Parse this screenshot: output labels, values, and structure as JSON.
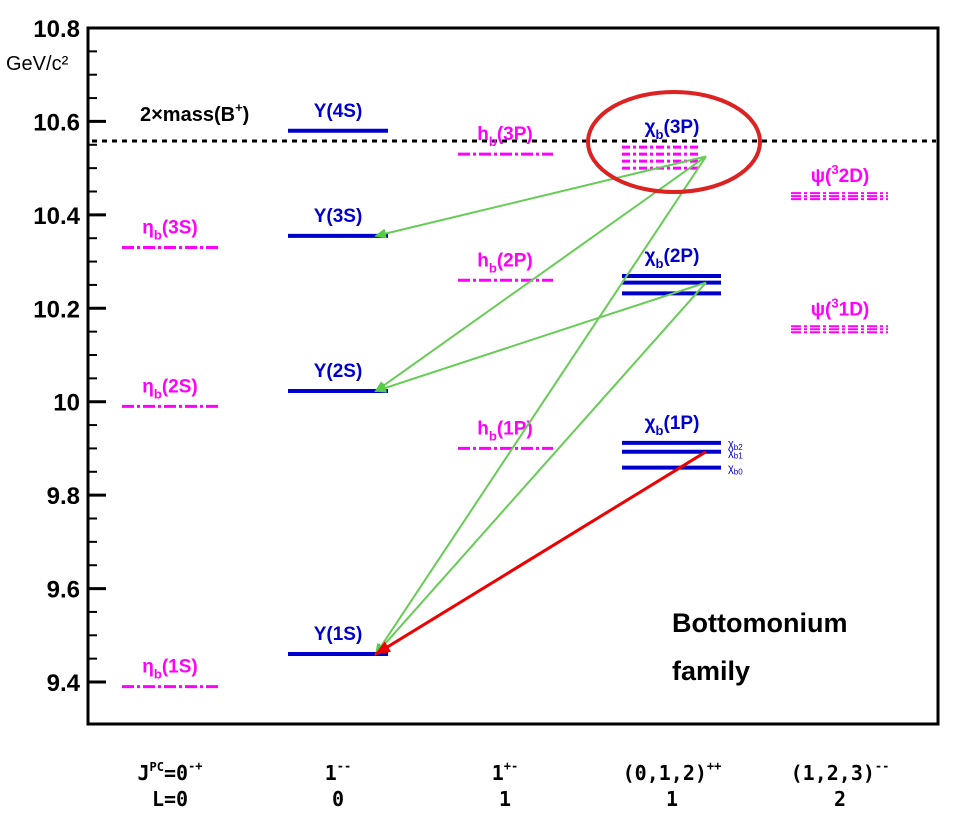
{
  "chart_data": {
    "type": "level-diagram",
    "ylabel": "GeV/c²",
    "ylim": [
      9.35,
      10.8
    ],
    "yticks": [
      "10.8",
      "10.6",
      "10.4",
      "10.2",
      "10",
      "9.8",
      "9.6",
      "9.4"
    ],
    "ytick_values": [
      10.8,
      10.6,
      10.4,
      10.2,
      10.0,
      9.8,
      9.6,
      9.4
    ],
    "colors": {
      "measured": "#0000cc",
      "predicted": "#ff00ff",
      "radiative": "#66cc55",
      "hadronic": "#ee0000",
      "highlight": "#dd2222"
    },
    "columns": [
      {
        "jpc_prefix": "J",
        "jpc_sup": "PC",
        "jpc_text": "=0",
        "jpc_sup2": "-+",
        "l_text": "L=0"
      },
      {
        "jpc_prefix": "",
        "jpc_sup": "",
        "jpc_text": "1",
        "jpc_sup2": "--",
        "l_text": "0"
      },
      {
        "jpc_prefix": "",
        "jpc_sup": "",
        "jpc_text": "1",
        "jpc_sup2": "+-",
        "l_text": "1"
      },
      {
        "jpc_prefix": "",
        "jpc_sup": "",
        "jpc_text": "(0,1,2)",
        "jpc_sup2": "++",
        "l_text": "1"
      },
      {
        "jpc_prefix": "",
        "jpc_sup": "",
        "jpc_text": "(1,2,3)",
        "jpc_sup2": "--",
        "l_text": "2"
      }
    ],
    "levels": [
      {
        "column": 0,
        "mass": 10.33,
        "style": "predicted",
        "label_main": "η",
        "label_sub": "b",
        "label_sup": "",
        "label_rest": "(3S)"
      },
      {
        "column": 0,
        "mass": 9.99,
        "style": "predicted",
        "label_main": "η",
        "label_sub": "b",
        "label_sup": "",
        "label_rest": "(2S)"
      },
      {
        "column": 0,
        "mass": 9.39,
        "style": "predicted",
        "label_main": "η",
        "label_sub": "b",
        "label_sup": "",
        "label_rest": "(1S)"
      },
      {
        "column": 1,
        "mass": 10.58,
        "style": "measured",
        "label_main": "Υ",
        "label_sub": "",
        "label_sup": "",
        "label_rest": "(4S)"
      },
      {
        "column": 1,
        "mass": 10.355,
        "style": "measured",
        "label_main": "Υ",
        "label_sub": "",
        "label_sup": "",
        "label_rest": "(3S)"
      },
      {
        "column": 1,
        "mass": 10.023,
        "style": "measured",
        "label_main": "Υ",
        "label_sub": "",
        "label_sup": "",
        "label_rest": "(2S)"
      },
      {
        "column": 1,
        "mass": 9.46,
        "style": "measured",
        "label_main": "Υ",
        "label_sub": "",
        "label_sup": "",
        "label_rest": "(1S)"
      },
      {
        "column": 2,
        "mass": 10.53,
        "style": "predicted",
        "label_main": "h",
        "label_sub": "b",
        "label_sup": "",
        "label_rest": "(3P)"
      },
      {
        "column": 2,
        "mass": 10.26,
        "style": "predicted",
        "label_main": "h",
        "label_sub": "b",
        "label_sup": "",
        "label_rest": "(2P)"
      },
      {
        "column": 2,
        "mass": 9.9,
        "style": "predicted",
        "label_main": "h",
        "label_sub": "b",
        "label_sup": "",
        "label_rest": "(1P)"
      },
      {
        "column": 3,
        "mass": 10.53,
        "style": "predicted-multi",
        "label_main": "χ",
        "label_sub": "b",
        "label_sup": "",
        "label_rest": "(3P)"
      },
      {
        "column": 3,
        "mass": 10.255,
        "style": "measured-triplet",
        "label_main": "χ",
        "label_sub": "b",
        "label_sup": "",
        "label_rest": "(2P)"
      },
      {
        "column": 3,
        "mass": 9.893,
        "style": "measured-triplet",
        "label_main": "χ",
        "label_sub": "b",
        "label_sup": "",
        "label_rest": "(1P)"
      },
      {
        "column": 4,
        "mass": 10.44,
        "style": "predicted-multi",
        "label_main": "ψ(",
        "label_sub": "",
        "label_sup": "3",
        "label_rest": "2D)"
      },
      {
        "column": 4,
        "mass": 10.155,
        "style": "predicted-multi",
        "label_main": "ψ(",
        "label_sub": "",
        "label_sup": "3",
        "label_rest": "1D)"
      }
    ],
    "triplet_2p": [
      10.269,
      10.255,
      10.232
    ],
    "triplet_1p": [
      9.912,
      9.893,
      9.859
    ],
    "triplet_3p": [
      10.545,
      10.53,
      10.515,
      10.5
    ],
    "chi_b_1p_sublabels": [
      "χb2",
      "χb1",
      "χb0"
    ],
    "threshold": {
      "mass": 10.558,
      "label": "2×mass(B",
      "label_sup": "+",
      "label_end": ")"
    },
    "transitions": [
      {
        "from": [
          3,
          10.525
        ],
        "to": [
          1,
          10.355
        ],
        "kind": "radiative"
      },
      {
        "from": [
          3,
          10.525
        ],
        "to": [
          1,
          10.023
        ],
        "kind": "radiative"
      },
      {
        "from": [
          3,
          10.525
        ],
        "to": [
          1,
          9.46
        ],
        "kind": "radiative"
      },
      {
        "from": [
          3,
          10.255
        ],
        "to": [
          1,
          10.023
        ],
        "kind": "radiative"
      },
      {
        "from": [
          3,
          10.255
        ],
        "to": [
          1,
          9.46
        ],
        "kind": "radiative"
      },
      {
        "from": [
          3,
          9.893
        ],
        "to": [
          1,
          9.46
        ],
        "kind": "hadronic"
      }
    ],
    "annotation": [
      "Bottomonium",
      "family"
    ]
  }
}
